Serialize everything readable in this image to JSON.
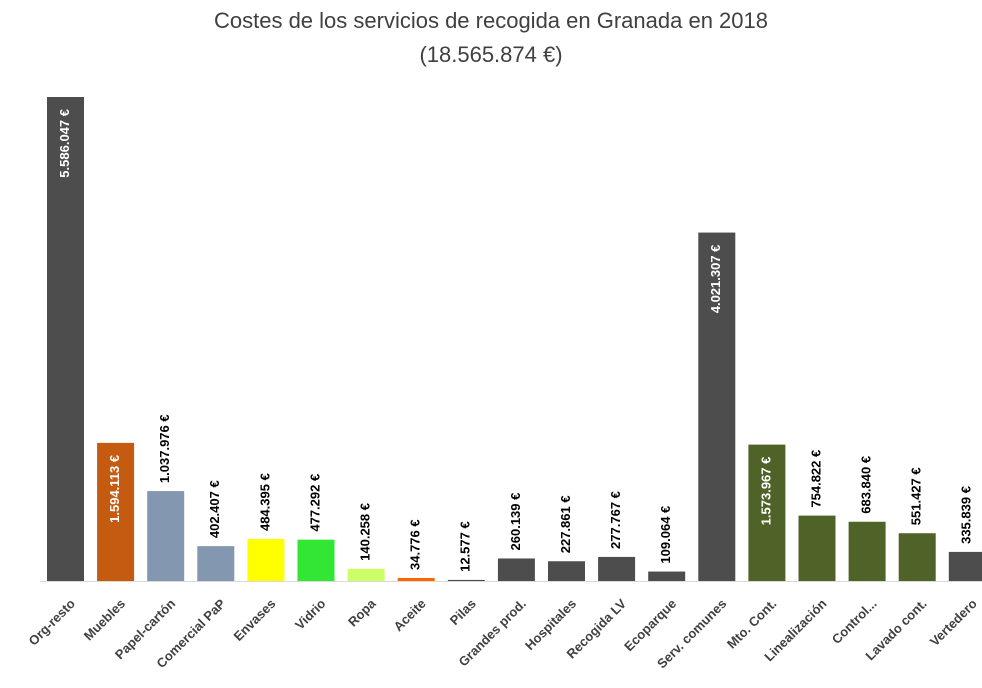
{
  "chart_data": {
    "type": "bar",
    "title": "Costes de los servicios de recogida en Granada en 2018",
    "subtitle": "(18.565.874 €)",
    "categories": [
      "Org-resto",
      "Muebles",
      "Papel-cartón",
      "Comercial PaP",
      "Envases",
      "Vidrio",
      "Ropa",
      "Aceite",
      "Pilas",
      "Grandes prod.",
      "Hospitales",
      "Recogida LV",
      "Ecoparque",
      "Serv. comunes",
      "Mto. Cont.",
      "Linealización",
      "Control...",
      "Lavado cont.",
      "Vertedero"
    ],
    "values": [
      5586047,
      1594113,
      1037976,
      402407,
      484395,
      477292,
      140258,
      34776,
      12577,
      260139,
      227861,
      277767,
      109064,
      4021307,
      1573967,
      754822,
      683840,
      551427,
      335839
    ],
    "value_labels": [
      "5.586.047 €",
      "1.594.113 €",
      "1.037.976 €",
      "402.407 €",
      "484.395 €",
      "477.292 €",
      "140.258 €",
      "34.776 €",
      "12.577 €",
      "260.139 €",
      "227.861 €",
      "277.767 €",
      "109.064 €",
      "4.021.307 €",
      "1.573.967 €",
      "754.822 €",
      "683.840 €",
      "551.427 €",
      "335.839 €"
    ],
    "colors": [
      "#4d4d4d",
      "#c55a11",
      "#8497b0",
      "#8497b0",
      "#ffff00",
      "#33e633",
      "#ccff66",
      "#ff6600",
      "#4d4d4d",
      "#4d4d4d",
      "#4d4d4d",
      "#4d4d4d",
      "#4d4d4d",
      "#4d4d4d",
      "#4f6228",
      "#4f6228",
      "#4f6228",
      "#4f6228",
      "#4d4d4d"
    ]
  }
}
